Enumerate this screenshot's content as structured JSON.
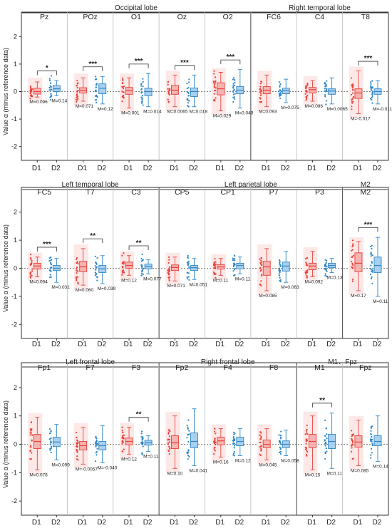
{
  "chart_data": [
    {
      "type": "box",
      "ylabel": "Value α (minus reference data)",
      "ylim": [
        -2.5,
        2.5
      ],
      "yticks": [
        -2,
        -1,
        0,
        1,
        2
      ],
      "groups": [
        {
          "label": "Occipital lobe",
          "span": [
            0,
            4
          ]
        },
        {
          "label": "Right temporal lobe",
          "span": [
            5,
            7
          ]
        }
      ],
      "channels": [
        {
          "name": "Pz",
          "sig": "*",
          "d1": {
            "med": 0.0,
            "q1": -0.09,
            "q3": 0.12,
            "lo": -0.2,
            "hi": 0.35,
            "m": "M=0.096"
          },
          "d2": {
            "med": 0.1,
            "q1": 0.0,
            "q3": 0.22,
            "lo": -0.15,
            "hi": 0.4,
            "m": "M=0.14"
          }
        },
        {
          "name": "POz",
          "sig": "***",
          "d1": {
            "med": 0.03,
            "q1": -0.05,
            "q3": 0.14,
            "lo": -0.35,
            "hi": 0.5,
            "m": "M=0.071"
          },
          "d2": {
            "med": 0.12,
            "q1": -0.08,
            "q3": 0.28,
            "lo": -0.45,
            "hi": 0.55,
            "m": "M=0.12"
          }
        },
        {
          "name": "O1",
          "sig": "***",
          "d1": {
            "med": 0.03,
            "q1": -0.1,
            "q3": 0.15,
            "lo": -0.6,
            "hi": 0.5,
            "m": "M=0.001"
          },
          "d2": {
            "med": 0.0,
            "q1": -0.15,
            "q3": 0.12,
            "lo": -0.55,
            "hi": 0.65,
            "m": "M=0.014"
          }
        },
        {
          "name": "Oz",
          "sig": "***",
          "d1": {
            "med": 0.05,
            "q1": -0.1,
            "q3": 0.22,
            "lo": -0.55,
            "hi": 0.6,
            "m": "M=0.0065"
          },
          "d2": {
            "med": 0.0,
            "q1": -0.18,
            "q3": 0.13,
            "lo": -0.55,
            "hi": 0.6,
            "m": "M=0.018"
          }
        },
        {
          "name": "O2",
          "sig": "***",
          "d1": {
            "med": 0.1,
            "q1": -0.12,
            "q3": 0.32,
            "lo": -0.7,
            "hi": 0.7,
            "m": "M=0.029"
          },
          "d2": {
            "med": 0.05,
            "q1": -0.08,
            "q3": 0.18,
            "lo": -0.6,
            "hi": 0.8,
            "m": "M=0.049"
          }
        },
        {
          "name": "FC6",
          "sig": "",
          "d1": {
            "med": 0.05,
            "q1": -0.08,
            "q3": 0.18,
            "lo": -0.55,
            "hi": 0.6,
            "m": "M=0.093"
          },
          "d2": {
            "med": 0.03,
            "q1": -0.08,
            "q3": 0.12,
            "lo": -0.4,
            "hi": 0.45,
            "m": "M=0.075"
          }
        },
        {
          "name": "C4",
          "sig": "",
          "d1": {
            "med": 0.07,
            "q1": -0.05,
            "q3": 0.15,
            "lo": -0.35,
            "hi": 0.4,
            "m": "M=0.096"
          },
          "d2": {
            "med": 0.02,
            "q1": -0.1,
            "q3": 0.1,
            "lo": -0.45,
            "hi": 0.5,
            "m": "M=0.0065"
          }
        },
        {
          "name": "T8",
          "sig": "***",
          "d1": {
            "med": -0.05,
            "q1": -0.25,
            "q3": 0.1,
            "lo": -0.8,
            "hi": 0.75,
            "m": "M=-0.017"
          },
          "d2": {
            "med": 0.0,
            "q1": -0.1,
            "q3": 0.1,
            "lo": -0.45,
            "hi": 0.4,
            "m": "M=-0.011"
          }
        }
      ]
    },
    {
      "type": "box",
      "ylabel": "Value α (minus reference data)",
      "ylim": [
        -2.5,
        2.5
      ],
      "yticks": [
        -2,
        -1,
        0,
        1,
        2
      ],
      "groups": [
        {
          "label": "Left temporal lobe",
          "span": [
            0,
            2
          ]
        },
        {
          "label": "Left parietal lobe",
          "span": [
            3,
            6
          ]
        },
        {
          "label": "M2",
          "span": [
            7,
            7
          ]
        }
      ],
      "channels": [
        {
          "name": "FC5",
          "sig": "***",
          "d1": {
            "med": 0.08,
            "q1": -0.03,
            "q3": 0.18,
            "lo": -0.3,
            "hi": 0.4,
            "m": "M=0.094"
          },
          "d2": {
            "med": 0.0,
            "q1": -0.08,
            "q3": 0.1,
            "lo": -0.5,
            "hi": 0.35,
            "m": "M=0.031"
          }
        },
        {
          "name": "T7",
          "sig": "**",
          "d1": {
            "med": 0.05,
            "q1": -0.12,
            "q3": 0.25,
            "lo": -0.6,
            "hi": 0.7,
            "m": "M=0.060"
          },
          "d2": {
            "med": -0.02,
            "q1": -0.15,
            "q3": 0.1,
            "lo": -0.55,
            "hi": 0.45,
            "m": "M=0.039"
          }
        },
        {
          "name": "C3",
          "sig": "**",
          "d1": {
            "med": 0.1,
            "q1": 0.0,
            "q3": 0.22,
            "lo": -0.25,
            "hi": 0.45,
            "m": "M=0.12"
          },
          "d2": {
            "med": 0.07,
            "q1": -0.02,
            "q3": 0.15,
            "lo": -0.2,
            "hi": 0.3,
            "m": "M=0.077"
          }
        },
        {
          "name": "CP5",
          "sig": "",
          "d1": {
            "med": 0.03,
            "q1": -0.08,
            "q3": 0.12,
            "lo": -0.45,
            "hi": 0.4,
            "m": "M=0.071"
          },
          "d2": {
            "med": 0.02,
            "q1": -0.08,
            "q3": 0.1,
            "lo": -0.4,
            "hi": 0.35,
            "m": "M=0.051"
          }
        },
        {
          "name": "CP1",
          "sig": "",
          "d1": {
            "med": 0.05,
            "q1": -0.03,
            "q3": 0.13,
            "lo": -0.25,
            "hi": 0.35,
            "m": "M=0.11"
          },
          "d2": {
            "med": 0.1,
            "q1": -0.02,
            "q3": 0.18,
            "lo": -0.2,
            "hi": 0.4,
            "m": "M=0.11"
          }
        },
        {
          "name": "P7",
          "sig": "",
          "d1": {
            "med": 0.05,
            "q1": -0.25,
            "q3": 0.25,
            "lo": -0.8,
            "hi": 0.7,
            "m": "M=0.085"
          },
          "d2": {
            "med": 0.08,
            "q1": -0.1,
            "q3": 0.22,
            "lo": -0.5,
            "hi": 0.6,
            "m": "M=0.063"
          }
        },
        {
          "name": "P3",
          "sig": "",
          "d1": {
            "med": 0.08,
            "q1": -0.05,
            "q3": 0.18,
            "lo": -0.3,
            "hi": 0.6,
            "m": "M=0.092"
          },
          "d2": {
            "med": 0.1,
            "q1": 0.02,
            "q3": 0.18,
            "lo": -0.15,
            "hi": 0.35,
            "m": "M=0.13"
          }
        },
        {
          "name": "M2",
          "sig": "***",
          "d1": {
            "med": 0.18,
            "q1": -0.12,
            "q3": 0.55,
            "lo": -0.8,
            "hi": 0.95,
            "m": "M=0.17"
          },
          "d2": {
            "med": 0.1,
            "q1": -0.15,
            "q3": 0.4,
            "lo": -1.0,
            "hi": 1.1,
            "m": "M=0.11"
          }
        }
      ]
    },
    {
      "type": "box",
      "ylabel": "Value α (minus reference data)",
      "ylim": [
        -2.5,
        2.5
      ],
      "yticks": [
        -2,
        -1,
        0,
        1,
        2
      ],
      "groups": [
        {
          "label": "Left frontal lobe",
          "span": [
            0,
            2
          ]
        },
        {
          "label": "Right frontal lobe",
          "span": [
            3,
            5
          ]
        },
        {
          "label": "M1、Fpz",
          "span": [
            6,
            7
          ]
        }
      ],
      "channels": [
        {
          "name": "Fp1",
          "sig": "",
          "d1": {
            "med": 0.1,
            "q1": -0.15,
            "q3": 0.35,
            "lo": -0.9,
            "hi": 0.95,
            "m": "M=0.078"
          },
          "d2": {
            "med": 0.08,
            "q1": -0.08,
            "q3": 0.25,
            "lo": -0.55,
            "hi": 0.7,
            "m": "M=0.099"
          }
        },
        {
          "name": "F7",
          "sig": "",
          "d1": {
            "med": -0.05,
            "q1": -0.2,
            "q3": 0.1,
            "lo": -0.7,
            "hi": 0.6,
            "m": "M=-0.0057"
          },
          "d2": {
            "med": -0.05,
            "q1": -0.2,
            "q3": 0.1,
            "lo": -0.65,
            "hi": 0.65,
            "m": "M=-0.040"
          }
        },
        {
          "name": "F3",
          "sig": "**",
          "d1": {
            "med": 0.1,
            "q1": -0.02,
            "q3": 0.22,
            "lo": -0.35,
            "hi": 0.6,
            "m": "M=0.12"
          },
          "d2": {
            "med": 0.05,
            "q1": -0.03,
            "q3": 0.14,
            "lo": -0.25,
            "hi": 0.3,
            "m": "M=0.11"
          }
        },
        {
          "name": "Fp2",
          "sig": "",
          "d1": {
            "med": 0.05,
            "q1": -0.15,
            "q3": 0.3,
            "lo": -0.85,
            "hi": 1.0,
            "m": "M=0.10"
          },
          "d2": {
            "med": 0.1,
            "q1": -0.12,
            "q3": 0.4,
            "lo": -0.75,
            "hi": 1.25,
            "m": "M=0.041"
          }
        },
        {
          "name": "F4",
          "sig": "",
          "d1": {
            "med": 0.12,
            "q1": -0.02,
            "q3": 0.25,
            "lo": -0.45,
            "hi": 0.55,
            "m": "M=0.16"
          },
          "d2": {
            "med": 0.1,
            "q1": -0.05,
            "q3": 0.25,
            "lo": -0.4,
            "hi": 0.55,
            "m": "M=0.12"
          }
        },
        {
          "name": "F8",
          "sig": "",
          "d1": {
            "med": 0.0,
            "q1": -0.12,
            "q3": 0.15,
            "lo": -0.55,
            "hi": 0.55,
            "m": "M=0.045"
          },
          "d2": {
            "med": 0.0,
            "q1": -0.12,
            "q3": 0.12,
            "lo": -0.4,
            "hi": 0.5,
            "m": "M=0.058"
          }
        },
        {
          "name": "M1",
          "sig": "**",
          "d1": {
            "med": 0.1,
            "q1": -0.12,
            "q3": 0.35,
            "lo": -0.9,
            "hi": 1.0,
            "m": "M=0.15"
          },
          "d2": {
            "med": 0.1,
            "q1": -0.15,
            "q3": 0.35,
            "lo": -0.85,
            "hi": 1.1,
            "m": "M=0.11"
          }
        },
        {
          "name": "Fpz",
          "sig": "",
          "d1": {
            "med": 0.08,
            "q1": -0.1,
            "q3": 0.3,
            "lo": -0.75,
            "hi": 0.85,
            "m": "M=0.085"
          },
          "d2": {
            "med": 0.1,
            "q1": -0.05,
            "q3": 0.3,
            "lo": -0.6,
            "hi": 1.0,
            "m": "M=0.14"
          }
        }
      ]
    }
  ],
  "day_labels": [
    "D1",
    "D2"
  ],
  "colors": {
    "d1": "#e8413a",
    "d1_fill": "#f6b3b0",
    "d1_bg": "#fde8e8",
    "d2": "#2f86c8",
    "d2_fill": "#a9d0ee",
    "axis": "#333333"
  }
}
